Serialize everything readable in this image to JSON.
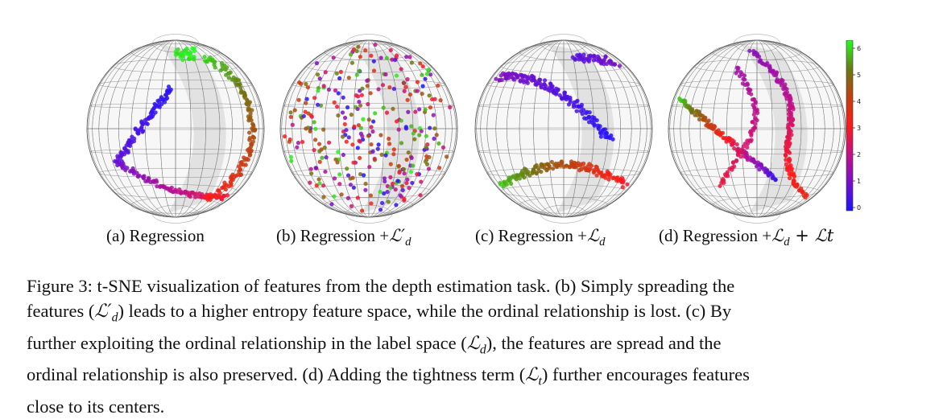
{
  "panels": [
    {
      "id": "a",
      "label_prefix": "(a) Regression",
      "label_math": "",
      "label_sub": "",
      "label_extra": ""
    },
    {
      "id": "b",
      "label_prefix": "(b) Regression +",
      "label_math": "ℒ′",
      "label_sub": "d",
      "label_extra": ""
    },
    {
      "id": "c",
      "label_prefix": "(c) Regression +",
      "label_math": "ℒ",
      "label_sub": "d",
      "label_extra": ""
    },
    {
      "id": "d",
      "label_prefix": "(d) Regression +",
      "label_math": "ℒ",
      "label_sub": "d",
      "label_extra": " + ℒt"
    }
  ],
  "colorbar": {
    "ticks": [
      "0",
      "1",
      "2",
      "3",
      "4",
      "5",
      "6"
    ],
    "colors": [
      "#1a14ff",
      "#7a10c8",
      "#c0108a",
      "#ff1a1a",
      "#c04010",
      "#6a7a10",
      "#20ff20"
    ]
  },
  "caption": {
    "line1": "Figure 3: t-SNE visualization of features from the depth estimation task. (b) Simply spreading the",
    "line2_a": "features (",
    "line2_math": "ℒ′",
    "line2_sub": "d",
    "line2_b": ") leads to a higher entropy feature space, while the ordinal relationship is lost. (c) By",
    "line3_a": "further exploiting the ordinal relationship in the label space (",
    "line3_math": "ℒ",
    "line3_sub": "d",
    "line3_b": "), the features are spread and the",
    "line4_a": "ordinal relationship is also preserved. (d) Adding the tightness term (",
    "line4_math": "ℒ",
    "line4_sub": "t",
    "line4_b": ") further encourages features",
    "line5": "close to its centers."
  }
}
